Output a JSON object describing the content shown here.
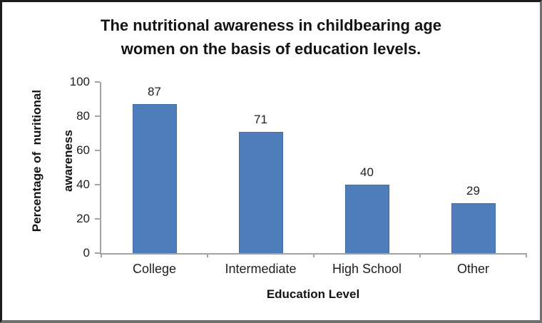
{
  "chart_data": {
    "type": "bar",
    "title": "The nutritional awareness in childbearing age women on the basis of education levels.",
    "title_lines": [
      "The nutritional awareness in childbearing age",
      "women on the basis of education levels."
    ],
    "categories": [
      "College",
      "Intermediate",
      "High School",
      "Other"
    ],
    "values": [
      87,
      71,
      40,
      29
    ],
    "xlabel": "Education Level",
    "ylabel": "Percentage of  nuritional awareness",
    "ylabel_lines": [
      "Percentage of  nuritional",
      "awareness"
    ],
    "ylim": [
      0,
      100
    ],
    "yticks": [
      0,
      20,
      40,
      60,
      80,
      100
    ],
    "grid": false,
    "legend": "none",
    "bar_color": "#4d7ebb",
    "bar_border_color": "#3f6ca5",
    "axis_color": "#a3a3a3",
    "text_color": "#1f1f1f"
  }
}
